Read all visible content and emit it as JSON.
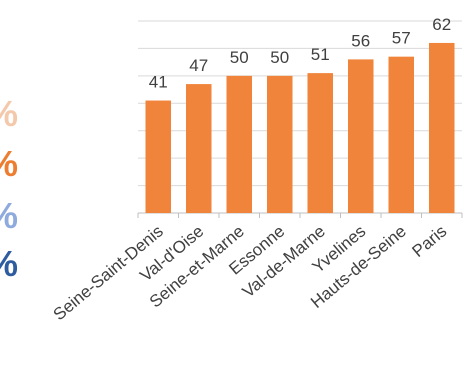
{
  "legend_marks": [
    {
      "text": "%",
      "color": "#f4c8ab"
    },
    {
      "text": "%",
      "color": "#ed7d31"
    },
    {
      "text": "%",
      "color": "#8faadc"
    },
    {
      "text": "%",
      "color": "#2e5c9e"
    }
  ],
  "chart_data": {
    "type": "bar",
    "categories": [
      "Seine-Saint-Denis",
      "Val-d'Oise",
      "Seine-et-Marne",
      "Essonne",
      "Val-de-Marne",
      "Yvelines",
      "Hauts-de-Seine",
      "Paris"
    ],
    "values": [
      41,
      47,
      50,
      50,
      51,
      56,
      57,
      62
    ],
    "ylim": [
      0,
      70
    ],
    "grid": true,
    "bar_color": "#f0843a"
  }
}
